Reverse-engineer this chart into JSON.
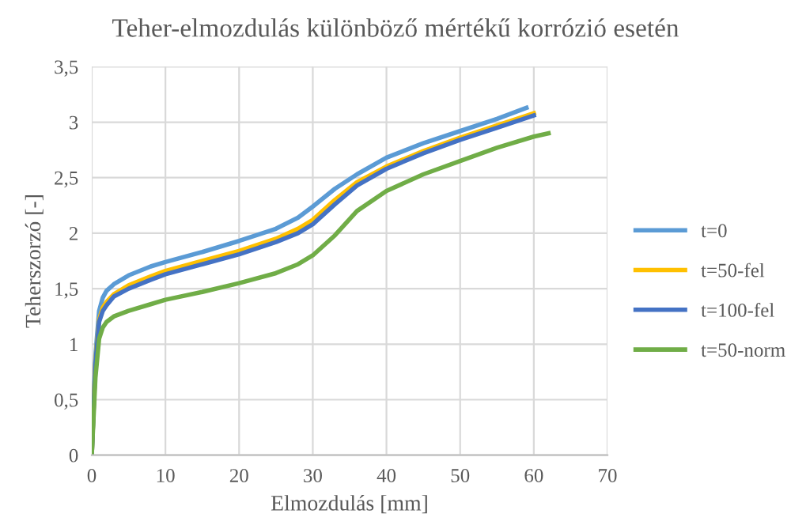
{
  "chart_data": {
    "type": "line",
    "title": "Teher-elmozdulás különböző mértékű korrózió esetén",
    "xlabel": "Elmozdulás [mm]",
    "ylabel": "Teherszorzó [-]",
    "xlim": [
      0,
      70
    ],
    "xticks": [
      0,
      10,
      20,
      30,
      40,
      50,
      60,
      70
    ],
    "ylim": [
      0,
      3.5
    ],
    "yticks": [
      0,
      {
        "value": 0.5,
        "label": "0,5"
      },
      1,
      {
        "value": 1.5,
        "label": "1,5"
      },
      2,
      {
        "value": 2.5,
        "label": "2,5"
      },
      3,
      {
        "value": 3.5,
        "label": "3,5"
      }
    ],
    "grid": true,
    "legend": "right",
    "marker": "none",
    "line_style": "solid",
    "series": [
      {
        "name": "t=0",
        "color": "#5b9bd5",
        "x": [
          0,
          0.5,
          1,
          1.5,
          2,
          3,
          5,
          8,
          10,
          15,
          20,
          25,
          28,
          30,
          33,
          36,
          40,
          45,
          50,
          55,
          59
        ],
        "values": [
          0,
          0.9,
          1.3,
          1.42,
          1.48,
          1.54,
          1.62,
          1.7,
          1.74,
          1.83,
          1.93,
          2.04,
          2.14,
          2.24,
          2.4,
          2.53,
          2.68,
          2.81,
          2.92,
          3.03,
          3.13
        ]
      },
      {
        "name": "t=50-fel",
        "color": "#ffc000",
        "x": [
          0,
          0.5,
          1,
          1.5,
          2,
          3,
          5,
          8,
          10,
          15,
          20,
          25,
          28,
          30,
          33,
          36,
          40,
          45,
          50,
          55,
          60
        ],
        "values": [
          0,
          0.85,
          1.22,
          1.33,
          1.38,
          1.45,
          1.53,
          1.61,
          1.66,
          1.75,
          1.84,
          1.95,
          2.04,
          2.12,
          2.3,
          2.46,
          2.6,
          2.74,
          2.86,
          2.97,
          3.08
        ]
      },
      {
        "name": "t=100-fel",
        "color": "#4472c4",
        "x": [
          0,
          0.5,
          1,
          1.5,
          2,
          3,
          5,
          8,
          10,
          15,
          20,
          25,
          28,
          30,
          33,
          36,
          40,
          45,
          50,
          55,
          60
        ],
        "values": [
          0,
          0.83,
          1.2,
          1.3,
          1.35,
          1.43,
          1.5,
          1.58,
          1.63,
          1.72,
          1.81,
          1.92,
          2.0,
          2.08,
          2.26,
          2.43,
          2.58,
          2.72,
          2.84,
          2.95,
          3.06
        ]
      },
      {
        "name": "t=50-norm",
        "color": "#70ad47",
        "x": [
          0,
          0.5,
          1,
          1.5,
          2,
          3,
          5,
          8,
          10,
          15,
          20,
          25,
          28,
          30,
          33,
          36,
          40,
          45,
          50,
          55,
          60,
          62
        ],
        "values": [
          0,
          0.7,
          1.05,
          1.15,
          1.2,
          1.25,
          1.3,
          1.36,
          1.4,
          1.47,
          1.55,
          1.64,
          1.72,
          1.8,
          1.98,
          2.2,
          2.38,
          2.53,
          2.65,
          2.77,
          2.87,
          2.9
        ]
      }
    ]
  }
}
